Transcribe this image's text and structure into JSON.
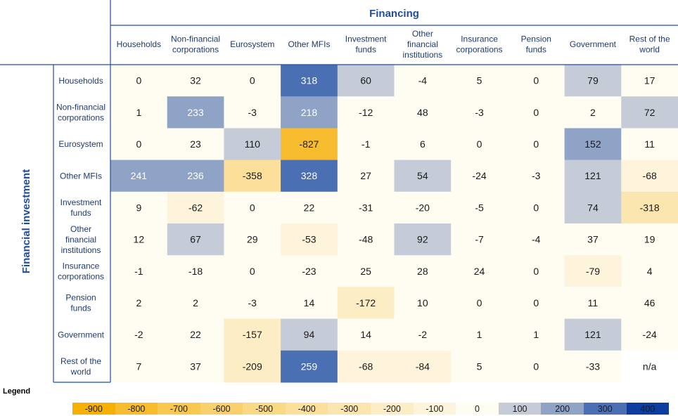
{
  "chart_data": {
    "type": "heatmap",
    "title": "Financing",
    "ylabel": "Financial investment",
    "columns": [
      [
        "Households"
      ],
      [
        "Non-financial",
        "corporations"
      ],
      [
        "Eurosystem"
      ],
      [
        "Other MFIs"
      ],
      [
        "Investment",
        "funds"
      ],
      [
        "Other",
        "financial",
        "institutions"
      ],
      [
        "Insurance",
        "corporations"
      ],
      [
        "Pension",
        "funds"
      ],
      [
        "Government"
      ],
      [
        "Rest of the",
        "world"
      ]
    ],
    "rows": [
      [
        "Households"
      ],
      [
        "Non-financial",
        "corporations"
      ],
      [
        "Eurosystem"
      ],
      [
        "Other MFIs"
      ],
      [
        "Investment",
        "funds"
      ],
      [
        "Other",
        "financial",
        "institutions"
      ],
      [
        "Insurance",
        "corporations"
      ],
      [
        "Pension",
        "funds"
      ],
      [
        "Government"
      ],
      [
        "Rest of the",
        "world"
      ]
    ],
    "values": [
      [
        0,
        32,
        0,
        318,
        60,
        -4,
        5,
        0,
        79,
        17
      ],
      [
        1,
        233,
        -3,
        218,
        -12,
        48,
        -3,
        0,
        2,
        72
      ],
      [
        0,
        23,
        110,
        -827,
        -1,
        6,
        0,
        0,
        152,
        11
      ],
      [
        241,
        236,
        -358,
        328,
        27,
        54,
        -24,
        -3,
        121,
        -68
      ],
      [
        9,
        -62,
        0,
        22,
        -31,
        -20,
        -5,
        0,
        74,
        -318
      ],
      [
        12,
        67,
        29,
        -53,
        -48,
        92,
        -7,
        -4,
        37,
        19
      ],
      [
        -1,
        -18,
        0,
        -23,
        25,
        28,
        24,
        0,
        -79,
        4
      ],
      [
        2,
        2,
        -3,
        14,
        -172,
        10,
        0,
        0,
        11,
        46
      ],
      [
        -2,
        22,
        -157,
        94,
        14,
        -2,
        1,
        1,
        121,
        -24
      ],
      [
        7,
        37,
        -209,
        259,
        -68,
        -84,
        5,
        0,
        -33,
        "n/a"
      ]
    ],
    "legend": {
      "title": "Legend",
      "stops": [
        {
          "label": "-900",
          "color": "#f5b000"
        },
        {
          "label": "-800",
          "color": "#f7bd2e"
        },
        {
          "label": "-700",
          "color": "#f8c84f"
        },
        {
          "label": "-600",
          "color": "#f9d06b"
        },
        {
          "label": "-500",
          "color": "#fad985"
        },
        {
          "label": "-400",
          "color": "#fbdf9b"
        },
        {
          "label": "-300",
          "color": "#fce6b0"
        },
        {
          "label": "-200",
          "color": "#fdedc5"
        },
        {
          "label": "-100",
          "color": "#fef4dc"
        },
        {
          "label": "0",
          "color": "#fffcf2"
        },
        {
          "label": "100",
          "color": "#c5ccd8"
        },
        {
          "label": "200",
          "color": "#8fa3c7"
        },
        {
          "label": "300",
          "color": "#4b6fb3"
        },
        {
          "label": "400",
          "color": "#0d3e9f"
        }
      ]
    }
  }
}
